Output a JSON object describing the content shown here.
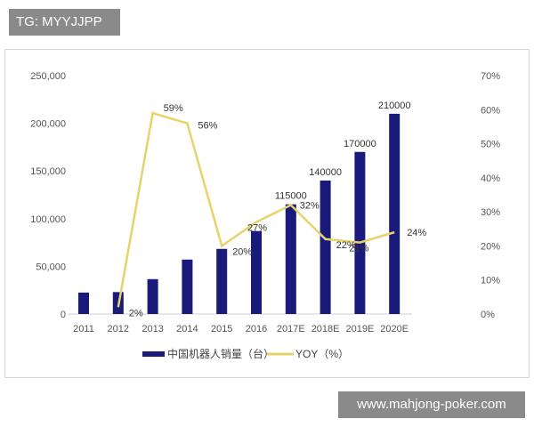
{
  "watermarks": {
    "top_left": "TG: MYYJJPP",
    "bottom_right": "www.mahjong-poker.com"
  },
  "chart_data": {
    "type": "bar+line",
    "categories": [
      "2011",
      "2012",
      "2013",
      "2014",
      "2015",
      "2016",
      "2017E",
      "2018E",
      "2019E",
      "2020E"
    ],
    "series": [
      {
        "name": "中国机器人销量（台）",
        "type": "bar",
        "axis": "left",
        "color": "#1a1a7a",
        "values": [
          22500,
          23000,
          36600,
          57100,
          68300,
          87000,
          115000,
          140000,
          170000,
          210000
        ],
        "labels": [
          "",
          "",
          "",
          "",
          "",
          "",
          "115000",
          "140000",
          "170000",
          "210000"
        ]
      },
      {
        "name": "YOY（%）",
        "type": "line",
        "axis": "right",
        "color": "#e6d36a",
        "values": [
          null,
          2,
          59,
          56,
          20,
          27,
          32,
          22,
          21,
          24
        ],
        "labels": [
          "",
          "2%",
          "59%",
          "56%",
          "20%",
          "27%",
          "32%",
          "22%",
          "21%",
          "24%"
        ]
      }
    ],
    "left_axis": {
      "ylim": [
        0,
        250000
      ],
      "ticks": [
        "0",
        "50,000",
        "100,000",
        "150,000",
        "200,000",
        "250,000"
      ]
    },
    "right_axis": {
      "ylim": [
        0,
        70
      ],
      "ticks": [
        "0%",
        "10%",
        "20%",
        "30%",
        "40%",
        "50%",
        "60%",
        "70%"
      ]
    },
    "grid": false,
    "legend": "bottom"
  }
}
